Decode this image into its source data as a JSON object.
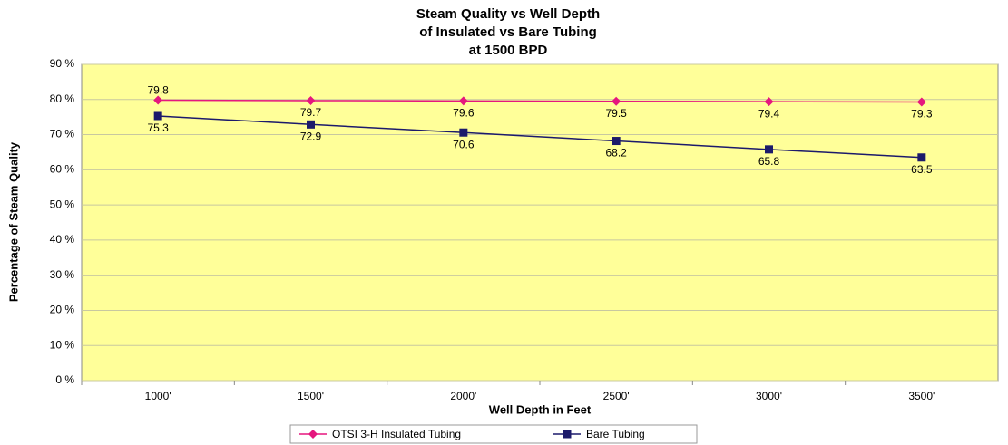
{
  "chart_data": {
    "type": "line",
    "title": [
      "Steam Quality vs Well Depth",
      "of Insulated vs Bare Tubing",
      "at 1500 BPD"
    ],
    "x_label": "Well Depth in Feet",
    "y_label": "Percentage of Steam Quality",
    "categories": [
      "1000'",
      "1500'",
      "2000'",
      "2500'",
      "3000'",
      "3500'"
    ],
    "series": [
      {
        "name": "OTSI 3-H Insulated Tubing",
        "color": "#e5177e",
        "marker": "diamond",
        "values": [
          79.8,
          79.7,
          79.6,
          79.5,
          79.4,
          79.3
        ]
      },
      {
        "name": "Bare Tubing",
        "color": "#1c1a6b",
        "marker": "square",
        "values": [
          75.3,
          72.9,
          70.6,
          68.2,
          65.8,
          63.5
        ]
      }
    ],
    "ylim": [
      0,
      90
    ],
    "yticks": [
      {
        "value": 0,
        "label": "0 %"
      },
      {
        "value": 10,
        "label": "10 %"
      },
      {
        "value": 20,
        "label": "20 %"
      },
      {
        "value": 30,
        "label": "30 %"
      },
      {
        "value": 40,
        "label": "40 %"
      },
      {
        "value": 50,
        "label": "50 %"
      },
      {
        "value": 60,
        "label": "60 %"
      },
      {
        "value": 70,
        "label": "70 %"
      },
      {
        "value": 80,
        "label": "80 %"
      },
      {
        "value": 90,
        "label": "90 %"
      }
    ],
    "grid": true,
    "legend": "bottom",
    "plot_background": "#ffff99"
  }
}
